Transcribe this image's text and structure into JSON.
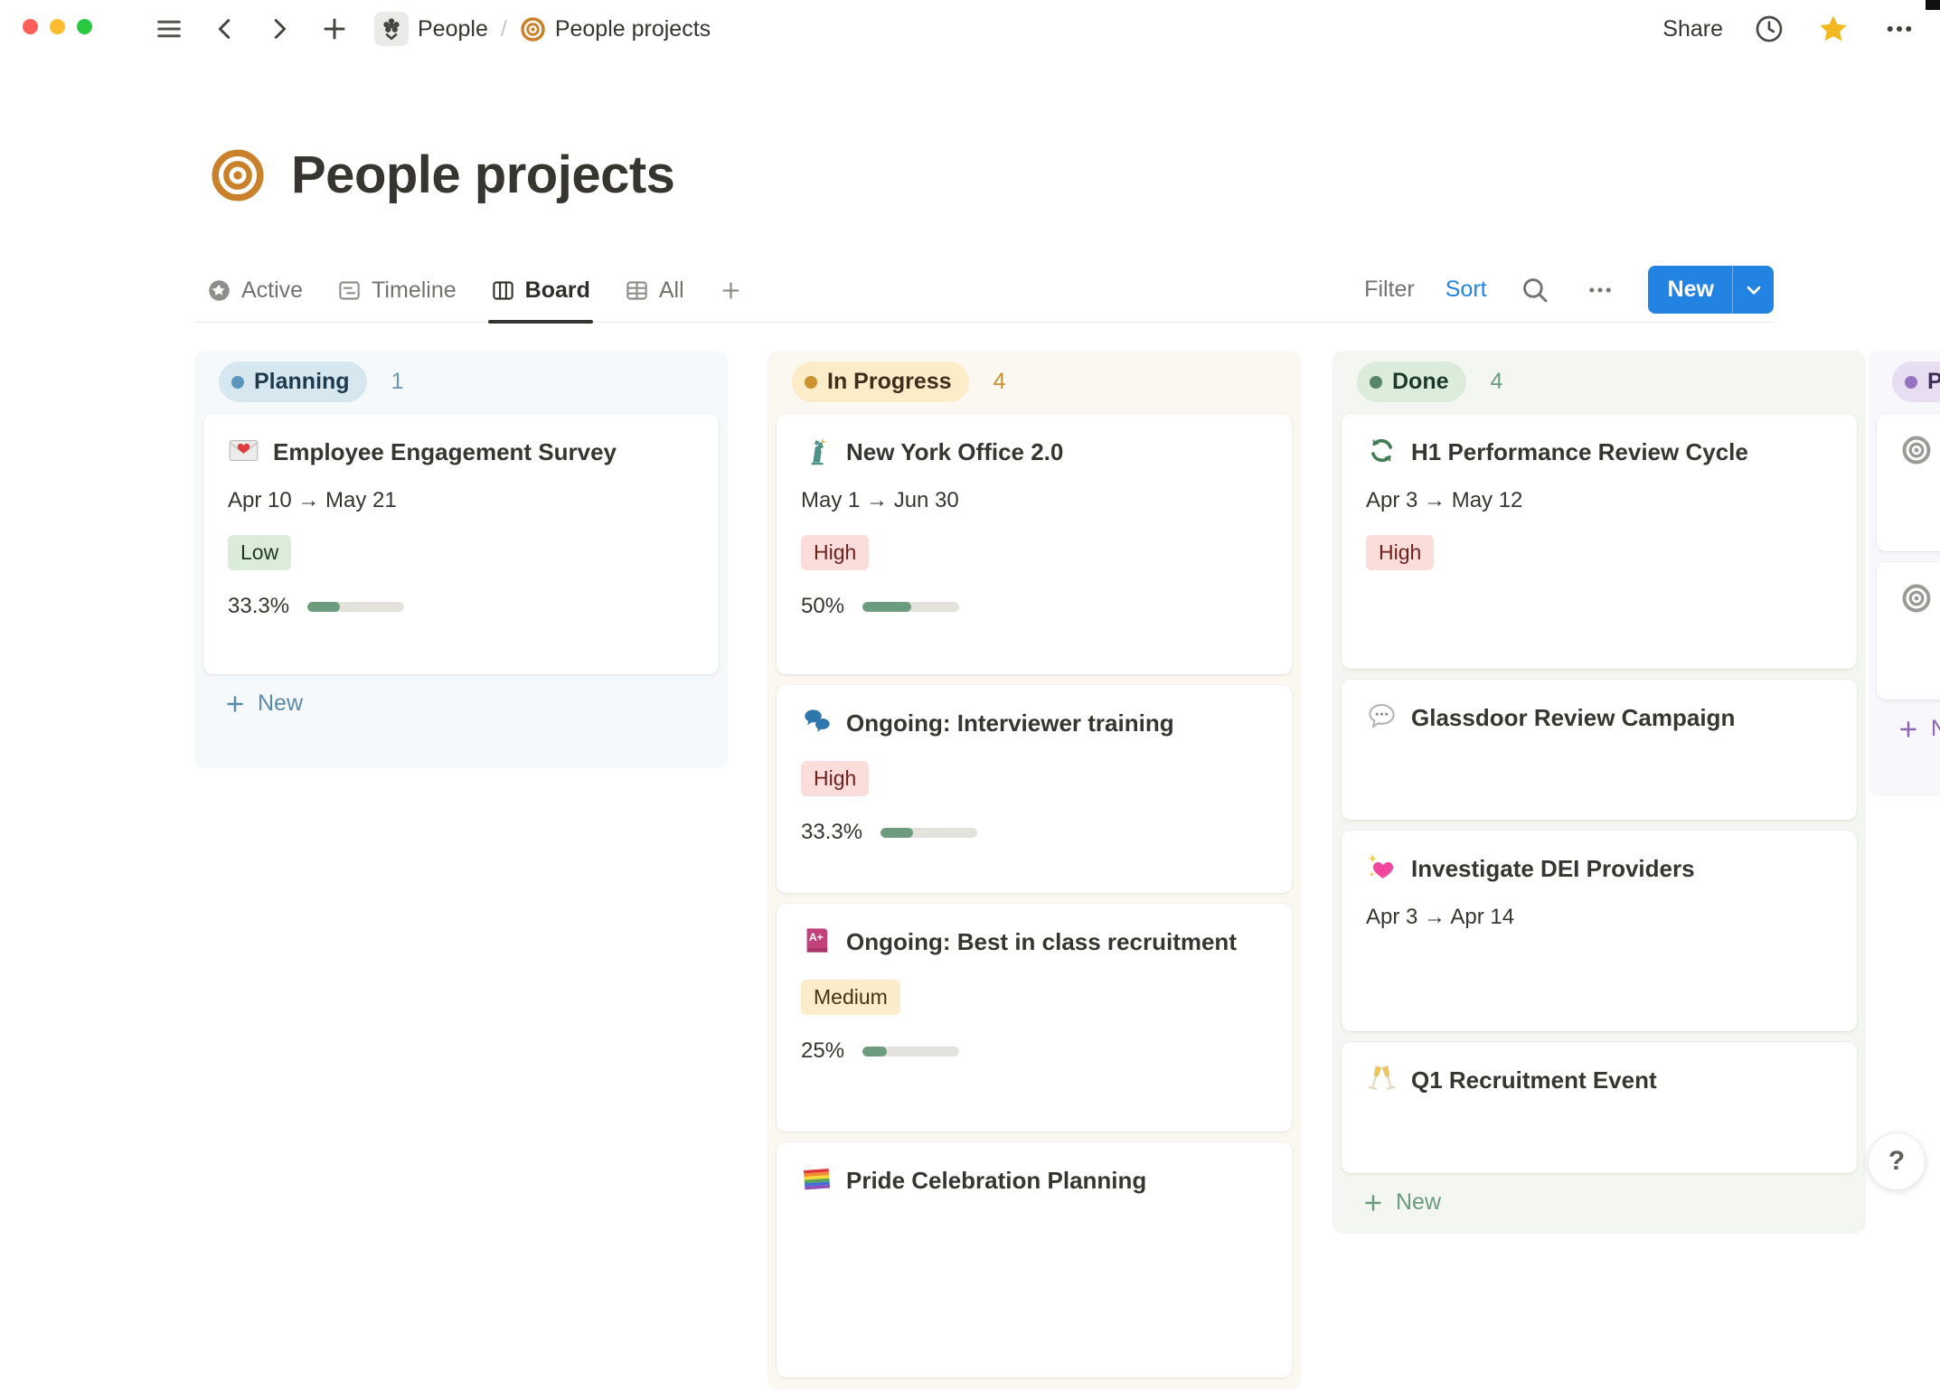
{
  "topbar": {
    "breadcrumb": {
      "teamspace": "People",
      "separator": "/",
      "page": "People projects"
    },
    "share_label": "Share"
  },
  "page": {
    "title": "People projects"
  },
  "view_tabs": [
    {
      "label": "Active",
      "icon": "star-circle-icon",
      "active": false
    },
    {
      "label": "Timeline",
      "icon": "timeline-icon",
      "active": false
    },
    {
      "label": "Board",
      "icon": "board-icon",
      "active": true
    },
    {
      "label": "All",
      "icon": "table-icon",
      "active": false
    }
  ],
  "toolbar": {
    "filter_label": "Filter",
    "sort_label": "Sort",
    "new_label": "New"
  },
  "board": {
    "columns": [
      {
        "name": "Planning",
        "count": "1",
        "theme": "blue",
        "new_label": "New",
        "show_new": true,
        "cards": [
          {
            "icon": "love-letter-emoji",
            "title": "Employee Engagement Survey",
            "dates": "Apr 10 → May 21",
            "tag": {
              "label": "Low",
              "color": "green"
            },
            "progress": {
              "label": "33.3%",
              "value": 33.3
            }
          }
        ]
      },
      {
        "name": "In Progress",
        "count": "4",
        "theme": "yellow",
        "new_label": "",
        "show_new": false,
        "cards": [
          {
            "icon": "statue-of-liberty-emoji",
            "title": "New York Office 2.0",
            "dates": "May 1 → Jun 30",
            "tag": {
              "label": "High",
              "color": "red"
            },
            "progress": {
              "label": "50%",
              "value": 50
            }
          },
          {
            "icon": "speech-bubbles-emoji",
            "title": "Ongoing: Interviewer training",
            "tag": {
              "label": "High",
              "color": "red"
            },
            "progress": {
              "label": "33.3%",
              "value": 33.3
            }
          },
          {
            "icon": "book-a-plus-emoji",
            "title": "Ongoing: Best in class recruitment",
            "tag": {
              "label": "Medium",
              "color": "yellow"
            },
            "progress": {
              "label": "25%",
              "value": 25
            }
          },
          {
            "icon": "rainbow-flag-emoji",
            "title": "Pride Celebration Planning"
          }
        ]
      },
      {
        "name": "Done",
        "count": "4",
        "theme": "green",
        "new_label": "New",
        "show_new": true,
        "cards": [
          {
            "icon": "arrows-cycle-emoji",
            "title": "H1 Performance Review Cycle",
            "dates": "Apr 3 → May 12",
            "tag": {
              "label": "High",
              "color": "red"
            }
          },
          {
            "icon": "speech-balloon-emoji",
            "title": "Glassdoor Review Campaign"
          },
          {
            "icon": "sparkling-heart-emoji",
            "title": "Investigate DEI Providers",
            "dates": "Apr 3 → Apr 14"
          },
          {
            "icon": "champagne-glasses-emoji",
            "title": "Q1 Recruitment Event"
          }
        ]
      },
      {
        "name": "Paused",
        "count": "",
        "theme": "purple",
        "new_label": "New",
        "show_new": true,
        "cards": [
          {
            "icon": "bullseye-gray-icon",
            "title": ""
          },
          {
            "icon": "bullseye-gray-icon",
            "title": ""
          }
        ]
      }
    ]
  },
  "help_label": "?",
  "colors": {
    "accent_blue": "#2383e2",
    "text": "#37352f",
    "status_planning_dot": "#5b97bd",
    "status_in_progress_dot": "#cb912f",
    "status_done_dot": "#578667",
    "status_paused_dot": "#9573c1",
    "tag_low_bg": "#dcecdb",
    "tag_high_bg": "#fbdedb",
    "tag_medium_bg": "#fbeccc",
    "progress_fill": "#6d9b7e"
  }
}
